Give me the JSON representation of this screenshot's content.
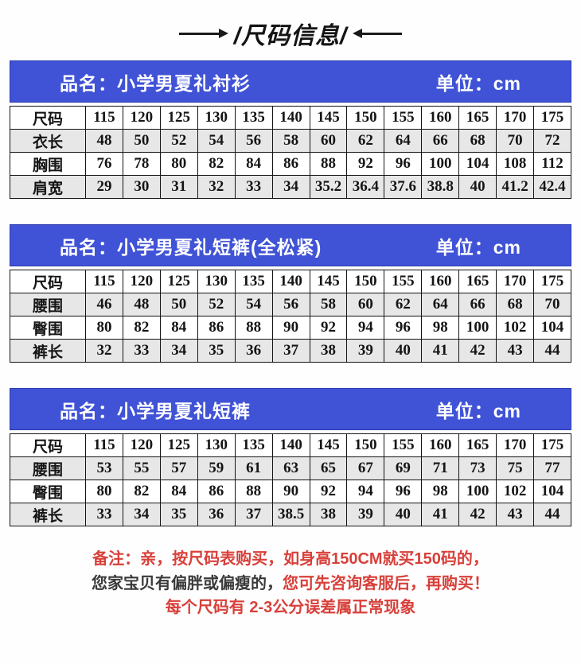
{
  "title": {
    "text": "/尺码信息/"
  },
  "tables": [
    {
      "name_label": "品名：小学男夏礼衬衫",
      "unit_label": "单位：cm",
      "rows": [
        {
          "label": "尺码",
          "values": [
            "115",
            "120",
            "125",
            "130",
            "135",
            "140",
            "145",
            "150",
            "155",
            "160",
            "165",
            "170",
            "175"
          ]
        },
        {
          "label": "衣长",
          "values": [
            "48",
            "50",
            "52",
            "54",
            "56",
            "58",
            "60",
            "62",
            "64",
            "66",
            "68",
            "70",
            "72"
          ]
        },
        {
          "label": "胸围",
          "values": [
            "76",
            "78",
            "80",
            "82",
            "84",
            "86",
            "88",
            "92",
            "96",
            "100",
            "104",
            "108",
            "112"
          ]
        },
        {
          "label": "肩宽",
          "values": [
            "29",
            "30",
            "31",
            "32",
            "33",
            "34",
            "35.2",
            "36.4",
            "37.6",
            "38.8",
            "40",
            "41.2",
            "42.4"
          ]
        }
      ]
    },
    {
      "name_label": "品名：小学男夏礼短裤(全松紧)",
      "unit_label": "单位：cm",
      "rows": [
        {
          "label": "尺码",
          "values": [
            "115",
            "120",
            "125",
            "130",
            "135",
            "140",
            "145",
            "150",
            "155",
            "160",
            "165",
            "170",
            "175"
          ]
        },
        {
          "label": "腰围",
          "values": [
            "46",
            "48",
            "50",
            "52",
            "54",
            "56",
            "58",
            "60",
            "62",
            "64",
            "66",
            "68",
            "70"
          ]
        },
        {
          "label": "臀围",
          "values": [
            "80",
            "82",
            "84",
            "86",
            "88",
            "90",
            "92",
            "94",
            "96",
            "98",
            "100",
            "102",
            "104"
          ]
        },
        {
          "label": "裤长",
          "values": [
            "32",
            "33",
            "34",
            "35",
            "36",
            "37",
            "38",
            "39",
            "40",
            "41",
            "42",
            "43",
            "44"
          ]
        }
      ]
    },
    {
      "name_label": "品名：小学男夏礼短裤",
      "unit_label": "单位：cm",
      "rows": [
        {
          "label": "尺码",
          "values": [
            "115",
            "120",
            "125",
            "130",
            "135",
            "140",
            "145",
            "150",
            "155",
            "160",
            "165",
            "170",
            "175"
          ]
        },
        {
          "label": "腰围",
          "values": [
            "53",
            "55",
            "57",
            "59",
            "61",
            "63",
            "65",
            "67",
            "69",
            "71",
            "73",
            "75",
            "77"
          ]
        },
        {
          "label": "臀围",
          "values": [
            "80",
            "82",
            "84",
            "86",
            "88",
            "90",
            "92",
            "94",
            "96",
            "98",
            "100",
            "102",
            "104"
          ]
        },
        {
          "label": "裤长",
          "values": [
            "33",
            "34",
            "35",
            "36",
            "37",
            "38.5",
            "38",
            "39",
            "40",
            "41",
            "42",
            "43",
            "44"
          ]
        }
      ]
    }
  ],
  "note": {
    "line1": "备注：亲，按尺码表购买，如身高150CM就买150码的，",
    "line2_dark": "您家宝贝有偏胖或偏瘦的，",
    "line2_red": "您可先咨询客服后，再购买！",
    "line3": "每个尺码有 2-3公分误差属正常现象"
  },
  "colors": {
    "band_blue": "#4053d6",
    "band_border": "#2c3cae",
    "note_red": "#d8403a",
    "note_dark": "#3a3a3a",
    "row_alt_gray": "#e7e7e7"
  }
}
